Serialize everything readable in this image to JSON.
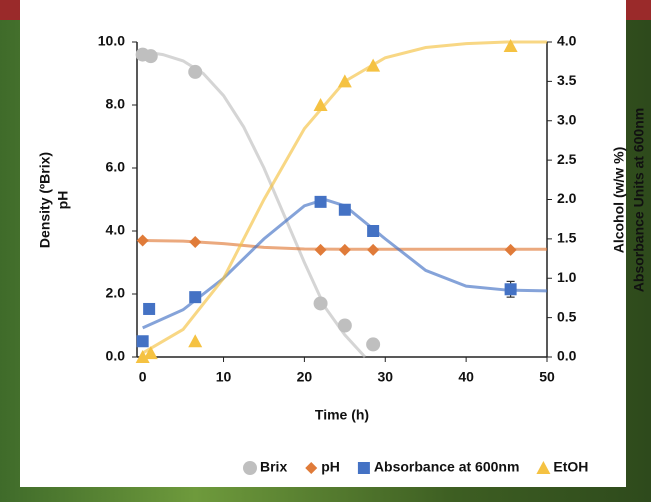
{
  "chart_data": {
    "type": "scatter",
    "x_label": "Time (h)",
    "y_label": [
      "Density (ºBrix)",
      "pH"
    ],
    "y2_label": [
      "Alcohol (w/w %)",
      "Absorbance Units at 600nm"
    ],
    "xlim": [
      -0.7,
      50
    ],
    "xticks": [
      0,
      10,
      20,
      30,
      40,
      50
    ],
    "ylim": [
      0,
      10
    ],
    "yticks": [
      {
        "value": 0,
        "label": "0.0"
      },
      {
        "value": 2,
        "label": "2.0"
      },
      {
        "value": 4,
        "label": "4.0"
      },
      {
        "value": 6,
        "label": "6.0"
      },
      {
        "value": 8,
        "label": "8.0"
      },
      {
        "value": 10,
        "label": "10.0"
      }
    ],
    "y2lim": [
      0,
      4
    ],
    "y2ticks": [
      {
        "value": 0,
        "label": "0.0"
      },
      {
        "value": 0.5,
        "label": "0.5"
      },
      {
        "value": 1,
        "label": "1.0"
      },
      {
        "value": 1.5,
        "label": "1.5"
      },
      {
        "value": 2,
        "label": "2.0"
      },
      {
        "value": 2.5,
        "label": "2.5"
      },
      {
        "value": 3,
        "label": "3.0"
      },
      {
        "value": 3.5,
        "label": "3.5"
      },
      {
        "value": 4,
        "label": "4.0"
      }
    ],
    "legend": "bottom",
    "series": [
      {
        "name": "Brix",
        "color": "#bfbfbf",
        "marker": "circle",
        "axis": "y",
        "x": [
          0,
          1,
          6.5,
          22,
          25,
          28.5
        ],
        "values": [
          9.6,
          9.55,
          9.05,
          1.7,
          1.0,
          0.4
        ],
        "fit": {
          "x": [
            0,
            2.5,
            5,
            7.5,
            10,
            12.5,
            15,
            17.5,
            20,
            22.5,
            25,
            27.5
          ],
          "values": [
            9.7,
            9.6,
            9.4,
            9.0,
            8.3,
            7.3,
            6.0,
            4.5,
            3.0,
            1.6,
            0.7,
            0
          ]
        }
      },
      {
        "name": "pH",
        "color": "#e07b39",
        "marker": "diamond",
        "axis": "y",
        "x": [
          0,
          6.5,
          22,
          25,
          28.5,
          45.5
        ],
        "values": [
          3.7,
          3.65,
          3.4,
          3.4,
          3.4,
          3.4
        ],
        "fit": {
          "x": [
            0,
            5,
            10,
            15,
            20,
            25,
            30,
            35,
            40,
            45,
            50
          ],
          "values": [
            3.7,
            3.68,
            3.6,
            3.48,
            3.43,
            3.42,
            3.42,
            3.42,
            3.42,
            3.42,
            3.42
          ]
        }
      },
      {
        "name": "Absorbance at 600nm",
        "color": "#4472c4",
        "marker": "square",
        "axis": "y2",
        "x": [
          0,
          0.8,
          6.5,
          22,
          25,
          28.5,
          45.5
        ],
        "values": [
          0.2,
          0.61,
          0.76,
          1.97,
          1.87,
          1.6,
          0.86
        ],
        "errors": [
          null,
          null,
          null,
          null,
          null,
          null,
          0.1
        ],
        "fit": {
          "x": [
            0,
            5,
            10,
            15,
            20,
            22.5,
            25,
            30,
            35,
            40,
            45,
            50
          ],
          "values": [
            0.37,
            0.6,
            1.0,
            1.5,
            1.92,
            2.0,
            1.92,
            1.5,
            1.1,
            0.9,
            0.85,
            0.84
          ]
        }
      },
      {
        "name": "EtOH",
        "color": "#f5c242",
        "marker": "triangle",
        "axis": "y2",
        "x": [
          0,
          1,
          6.5,
          22,
          25,
          28.5,
          45.5
        ],
        "values": [
          0.0,
          0.05,
          0.2,
          3.2,
          3.5,
          3.7,
          3.95
        ],
        "fit": {
          "x": [
            0,
            5,
            10,
            15,
            20,
            25,
            30,
            35,
            40,
            45,
            50
          ],
          "values": [
            0.05,
            0.35,
            1.0,
            2.0,
            2.9,
            3.5,
            3.8,
            3.93,
            3.98,
            4.0,
            4.0
          ]
        }
      }
    ]
  }
}
